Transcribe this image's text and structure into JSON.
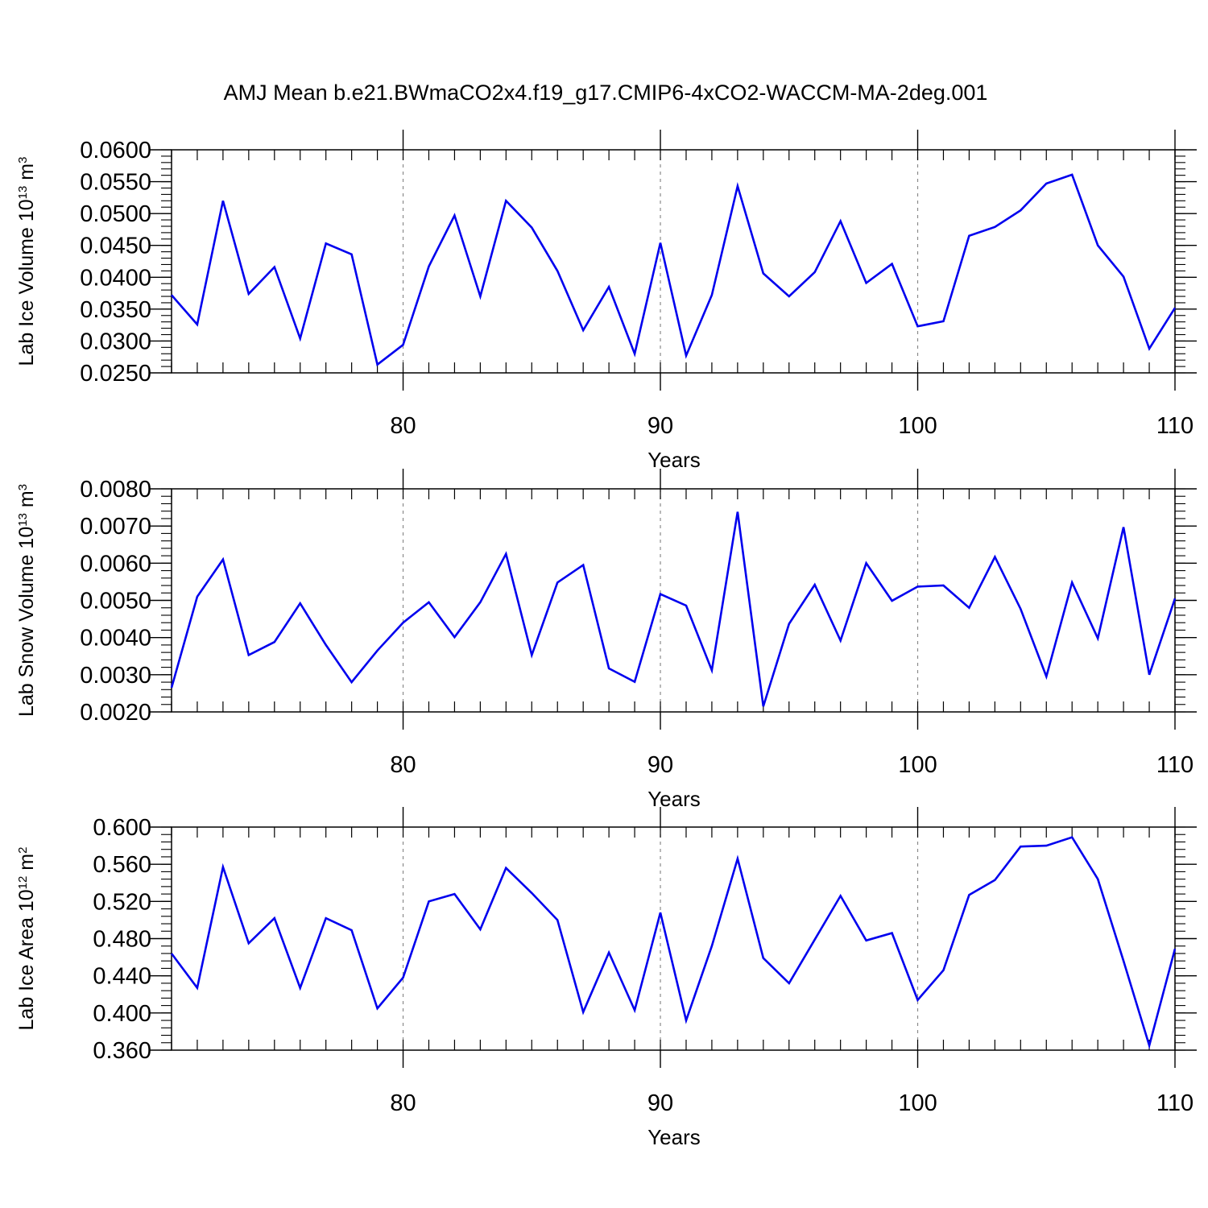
{
  "title": "AMJ Mean b.e21.BWmaCO2x4.f19_g17.CMIP6-4xCO2-WACCM-MA-2deg.001",
  "chart_data": [
    {
      "type": "line",
      "ylabel": "Lab Ice Volume 10",
      "ylabel_exp": "13",
      "ylabel_unit": " m",
      "ylabel_unit_exp": "3",
      "xlabel": "Years",
      "xlim": [
        71,
        110
      ],
      "ylim": [
        0.025,
        0.06
      ],
      "y_major_ticks": [
        "0.0250",
        "0.0300",
        "0.0350",
        "0.0400",
        "0.0450",
        "0.0500",
        "0.0550",
        "0.0600"
      ],
      "y_minor_step": 0.001,
      "x_major_ticks": [
        "80",
        "90",
        "100",
        "110"
      ],
      "x_minor_step": 1,
      "grid": "dashed vertical at major x ticks",
      "color": "#0000ee",
      "x": [
        71,
        72,
        73,
        74,
        75,
        76,
        77,
        78,
        79,
        80,
        81,
        82,
        83,
        84,
        85,
        86,
        87,
        88,
        89,
        90,
        91,
        92,
        93,
        94,
        95,
        96,
        97,
        98,
        99,
        100,
        101,
        102,
        103,
        104,
        105,
        106,
        107,
        108,
        109,
        110
      ],
      "values": [
        0.0372,
        0.0326,
        0.052,
        0.0374,
        0.0416,
        0.0304,
        0.0453,
        0.0436,
        0.0263,
        0.0294,
        0.0417,
        0.0497,
        0.037,
        0.052,
        0.0478,
        0.041,
        0.0317,
        0.0385,
        0.028,
        0.0454,
        0.0277,
        0.0372,
        0.0543,
        0.0406,
        0.037,
        0.0408,
        0.0488,
        0.0391,
        0.0421,
        0.0323,
        0.0331,
        0.0465,
        0.0479,
        0.0505,
        0.0547,
        0.0561,
        0.045,
        0.0401,
        0.0288,
        0.0352
      ]
    },
    {
      "type": "line",
      "ylabel": "Lab Snow Volume 10",
      "ylabel_exp": "13",
      "ylabel_unit": " m",
      "ylabel_unit_exp": "3",
      "xlabel": "Years",
      "xlim": [
        71,
        110
      ],
      "ylim": [
        0.002,
        0.008
      ],
      "y_major_ticks": [
        "0.0020",
        "0.0030",
        "0.0040",
        "0.0050",
        "0.0060",
        "0.0070",
        "0.0080"
      ],
      "y_minor_step": 0.0002,
      "x_major_ticks": [
        "80",
        "90",
        "100",
        "110"
      ],
      "x_minor_step": 1,
      "grid": "dashed vertical at major x ticks",
      "color": "#0000ee",
      "x": [
        71,
        72,
        73,
        74,
        75,
        76,
        77,
        78,
        79,
        80,
        81,
        82,
        83,
        84,
        85,
        86,
        87,
        88,
        89,
        90,
        91,
        92,
        93,
        94,
        95,
        96,
        97,
        98,
        99,
        100,
        101,
        102,
        103,
        104,
        105,
        106,
        107,
        108,
        109,
        110
      ],
      "values": [
        0.00265,
        0.0051,
        0.0061,
        0.00353,
        0.00388,
        0.00492,
        0.0038,
        0.0028,
        0.00365,
        0.0044,
        0.00495,
        0.00401,
        0.00495,
        0.00625,
        0.00353,
        0.00548,
        0.00595,
        0.00317,
        0.00281,
        0.00517,
        0.00486,
        0.00312,
        0.00738,
        0.00215,
        0.00437,
        0.00542,
        0.00392,
        0.006,
        0.00499,
        0.00537,
        0.0054,
        0.0048,
        0.00617,
        0.00477,
        0.00295,
        0.00548,
        0.00398,
        0.00697,
        0.003,
        0.00505
      ]
    },
    {
      "type": "line",
      "ylabel": "Lab Ice Area 10",
      "ylabel_exp": "12",
      "ylabel_unit": " m",
      "ylabel_unit_exp": "2",
      "xlabel": "Years",
      "xlim": [
        71,
        110
      ],
      "ylim": [
        0.36,
        0.6
      ],
      "y_major_ticks": [
        "0.360",
        "0.400",
        "0.440",
        "0.480",
        "0.520",
        "0.560",
        "0.600"
      ],
      "y_minor_step": 0.008,
      "x_major_ticks": [
        "80",
        "90",
        "100",
        "110"
      ],
      "x_minor_step": 1,
      "grid": "dashed vertical at major x ticks",
      "color": "#0000ee",
      "x": [
        71,
        72,
        73,
        74,
        75,
        76,
        77,
        78,
        79,
        80,
        81,
        82,
        83,
        84,
        85,
        86,
        87,
        88,
        89,
        90,
        91,
        92,
        93,
        94,
        95,
        96,
        97,
        98,
        99,
        100,
        101,
        102,
        103,
        104,
        105,
        106,
        107,
        108,
        109,
        110
      ],
      "values": [
        0.464,
        0.427,
        0.557,
        0.475,
        0.502,
        0.427,
        0.502,
        0.489,
        0.405,
        0.438,
        0.52,
        0.528,
        0.49,
        0.556,
        0.529,
        0.5,
        0.401,
        0.465,
        0.403,
        0.508,
        0.392,
        0.472,
        0.566,
        0.459,
        0.432,
        0.479,
        0.526,
        0.478,
        0.486,
        0.414,
        0.446,
        0.527,
        0.543,
        0.579,
        0.58,
        0.589,
        0.544,
        0.456,
        0.365,
        0.469
      ]
    }
  ]
}
